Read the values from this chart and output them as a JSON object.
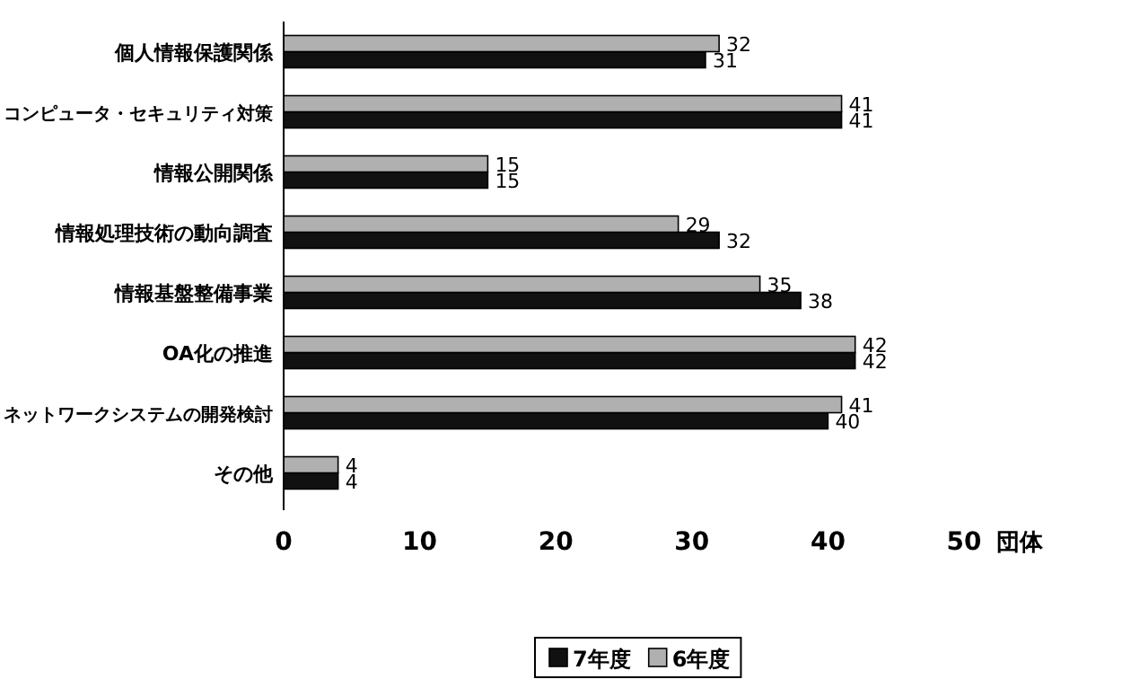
{
  "chart_data": {
    "type": "bar",
    "orientation": "horizontal",
    "categories": [
      "個人情報保護関係",
      "コンピュータ・セキュリティ対策",
      "情報公開関係",
      "情報処理技術の動向調査",
      "情報基盤整備事業",
      "OA化の推進",
      "ネットワークシステムの開発検討",
      "その他"
    ],
    "series": [
      {
        "name": "7年度",
        "color": "#111111",
        "values": [
          31,
          41,
          15,
          32,
          38,
          42,
          40,
          4
        ]
      },
      {
        "name": "6年度",
        "color": "#b0b0b0",
        "values": [
          32,
          41,
          15,
          29,
          35,
          42,
          41,
          4
        ]
      }
    ],
    "xlabel": "団体",
    "xlim": [
      0,
      50
    ],
    "xticks": [
      0,
      10,
      20,
      30,
      40,
      50
    ],
    "data_labels": true,
    "legend": "bottom",
    "grid": false
  }
}
